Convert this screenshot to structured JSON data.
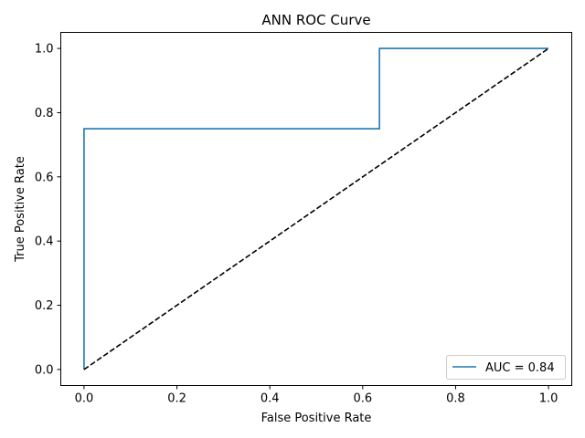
{
  "chart_data": {
    "type": "line",
    "title": "ANN ROC Curve",
    "xlabel": "False Positive Rate",
    "ylabel": "True Positive Rate",
    "xlim": [
      -0.05,
      1.05
    ],
    "ylim": [
      -0.05,
      1.05
    ],
    "xticks": [
      0.0,
      0.2,
      0.4,
      0.6,
      0.8,
      1.0
    ],
    "yticks": [
      0.0,
      0.2,
      0.4,
      0.6,
      0.8,
      1.0
    ],
    "xtick_labels": [
      "0.0",
      "0.2",
      "0.4",
      "0.6",
      "0.8",
      "1.0"
    ],
    "ytick_labels": [
      "0.0",
      "0.2",
      "0.4",
      "0.6",
      "0.8",
      "1.0"
    ],
    "grid": false,
    "legend_position": "lower-right",
    "series": [
      {
        "name": "AUC = 0.84",
        "color": "#1f77b4",
        "style": "solid",
        "x": [
          0.0,
          0.0,
          0.636,
          0.636,
          1.0
        ],
        "y": [
          0.0,
          0.75,
          0.75,
          1.0,
          1.0
        ]
      },
      {
        "color": "#000000",
        "style": "dashed",
        "x": [
          0.0,
          1.0
        ],
        "y": [
          0.0,
          1.0
        ]
      }
    ]
  }
}
